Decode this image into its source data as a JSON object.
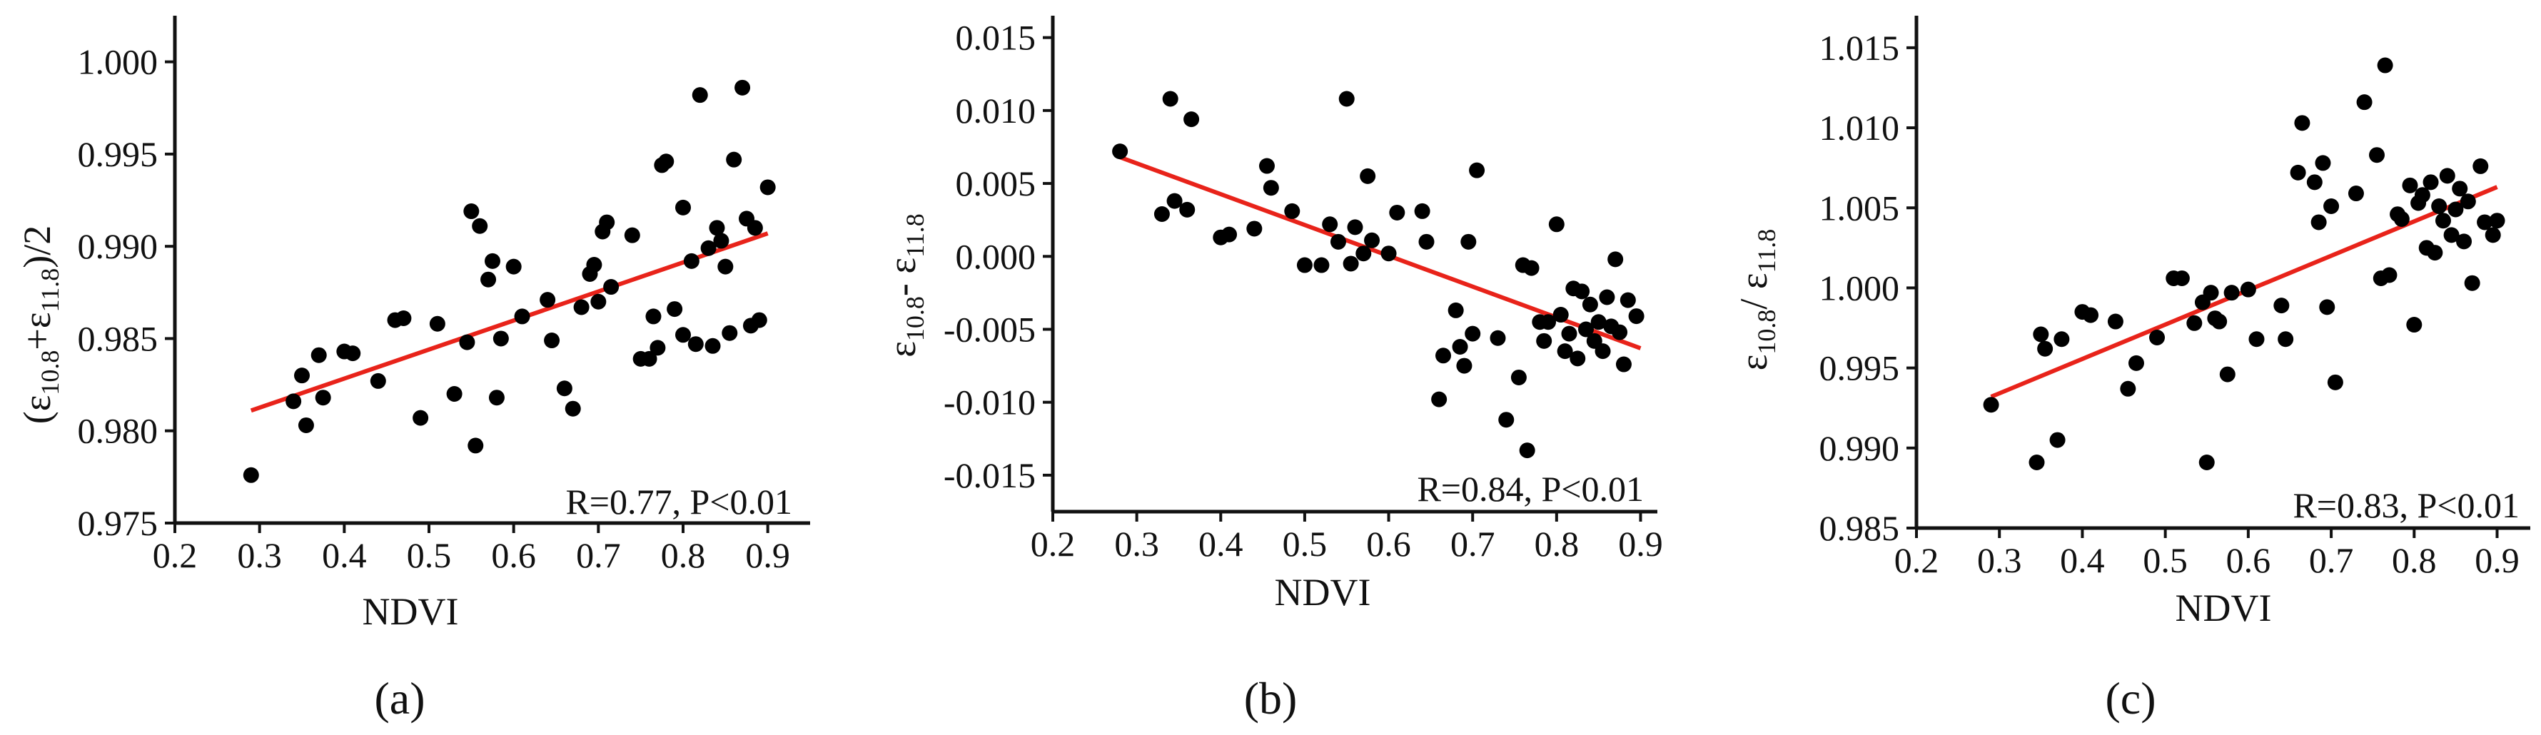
{
  "figure": {
    "colors": {
      "points": "#000000",
      "fit_line": "#e8231a",
      "axes": "#111111"
    }
  },
  "chart_data": [
    {
      "type": "scatter",
      "panel_label": "(a)",
      "xlabel": "NDVI",
      "ylabel": {
        "open": "(ε",
        "sub1": "10.8",
        "mid": "+ε",
        "sub2": "11.8",
        "close": ")/2"
      },
      "xlim": [
        0.2,
        0.95
      ],
      "ylim": [
        0.975,
        1.0025
      ],
      "xticks": [
        0.2,
        0.3,
        0.4,
        0.5,
        0.6,
        0.7,
        0.8,
        0.9
      ],
      "xtick_labels": [
        "0.2",
        "0.3",
        "0.4",
        "0.5",
        "0.6",
        "0.7",
        "0.8",
        "0.9"
      ],
      "yticks": [
        0.975,
        0.98,
        0.985,
        0.99,
        0.995,
        1.0
      ],
      "ytick_labels": [
        "0.975",
        "0.980",
        "0.985",
        "0.990",
        "0.995",
        "1.000"
      ],
      "annotation": "R=0.77, P<0.01",
      "fit_line": {
        "x": [
          0.29,
          0.9
        ],
        "y": [
          0.9811,
          0.9907
        ]
      },
      "grid": false,
      "points": [
        [
          0.29,
          0.9776
        ],
        [
          0.34,
          0.9816
        ],
        [
          0.35,
          0.983
        ],
        [
          0.355,
          0.9803
        ],
        [
          0.37,
          0.9841
        ],
        [
          0.375,
          0.9818
        ],
        [
          0.4,
          0.9843
        ],
        [
          0.41,
          0.9842
        ],
        [
          0.44,
          0.9827
        ],
        [
          0.46,
          0.986
        ],
        [
          0.47,
          0.9861
        ],
        [
          0.49,
          0.9807
        ],
        [
          0.51,
          0.9858
        ],
        [
          0.53,
          0.982
        ],
        [
          0.545,
          0.9848
        ],
        [
          0.55,
          0.9919
        ],
        [
          0.555,
          0.9792
        ],
        [
          0.56,
          0.9911
        ],
        [
          0.57,
          0.9882
        ],
        [
          0.575,
          0.9892
        ],
        [
          0.58,
          0.9818
        ],
        [
          0.585,
          0.985
        ],
        [
          0.6,
          0.9889
        ],
        [
          0.61,
          0.9862
        ],
        [
          0.64,
          0.9871
        ],
        [
          0.645,
          0.9849
        ],
        [
          0.66,
          0.9823
        ],
        [
          0.67,
          0.9812
        ],
        [
          0.68,
          0.9867
        ],
        [
          0.69,
          0.9885
        ],
        [
          0.695,
          0.989
        ],
        [
          0.7,
          0.987
        ],
        [
          0.705,
          0.9908
        ],
        [
          0.71,
          0.9913
        ],
        [
          0.715,
          0.9878
        ],
        [
          0.74,
          0.9906
        ],
        [
          0.75,
          0.9839
        ],
        [
          0.76,
          0.9839
        ],
        [
          0.765,
          0.9862
        ],
        [
          0.77,
          0.9845
        ],
        [
          0.775,
          0.9944
        ],
        [
          0.78,
          0.9946
        ],
        [
          0.79,
          0.9866
        ],
        [
          0.8,
          0.9921
        ],
        [
          0.8,
          0.9852
        ],
        [
          0.81,
          0.9892
        ],
        [
          0.815,
          0.9847
        ],
        [
          0.82,
          0.9982
        ],
        [
          0.83,
          0.9899
        ],
        [
          0.835,
          0.9846
        ],
        [
          0.84,
          0.991
        ],
        [
          0.845,
          0.9903
        ],
        [
          0.85,
          0.9889
        ],
        [
          0.855,
          0.9853
        ],
        [
          0.86,
          0.9947
        ],
        [
          0.87,
          0.9986
        ],
        [
          0.875,
          0.9915
        ],
        [
          0.88,
          0.9857
        ],
        [
          0.885,
          0.991
        ],
        [
          0.89,
          0.986
        ],
        [
          0.9,
          0.9932
        ]
      ]
    },
    {
      "type": "scatter",
      "panel_label": "(b)",
      "xlabel": "NDVI",
      "ylabel": {
        "open": "ε",
        "sub1": "10.8",
        "mid": "- ε",
        "sub2": "11.8",
        "close": ""
      },
      "xlim": [
        0.2,
        0.92
      ],
      "ylim": [
        -0.0175,
        0.0165
      ],
      "xticks": [
        0.2,
        0.3,
        0.4,
        0.5,
        0.6,
        0.7,
        0.8,
        0.9
      ],
      "xtick_labels": [
        "0.2",
        "0.3",
        "0.4",
        "0.5",
        "0.6",
        "0.7",
        "0.8",
        "0.9"
      ],
      "yticks": [
        -0.015,
        -0.01,
        -0.005,
        0.0,
        0.005,
        0.01,
        0.015
      ],
      "ytick_labels": [
        "-0.015",
        "-0.010",
        "-0.005",
        "0.000",
        "0.005",
        "0.010",
        "0.015"
      ],
      "annotation": "R=0.84, P<0.01",
      "fit_line": {
        "x": [
          0.28,
          0.9
        ],
        "y": [
          0.0068,
          -0.0063
        ]
      },
      "grid": false,
      "points": [
        [
          0.28,
          0.0072
        ],
        [
          0.33,
          0.0029
        ],
        [
          0.34,
          0.0108
        ],
        [
          0.345,
          0.0038
        ],
        [
          0.36,
          0.0032
        ],
        [
          0.365,
          0.0094
        ],
        [
          0.4,
          0.0013
        ],
        [
          0.41,
          0.0015
        ],
        [
          0.44,
          0.0019
        ],
        [
          0.455,
          0.0062
        ],
        [
          0.46,
          0.0047
        ],
        [
          0.485,
          0.0031
        ],
        [
          0.5,
          -0.0006
        ],
        [
          0.52,
          -0.0006
        ],
        [
          0.53,
          0.0022
        ],
        [
          0.54,
          0.001
        ],
        [
          0.55,
          0.0108
        ],
        [
          0.555,
          -0.0005
        ],
        [
          0.56,
          0.002
        ],
        [
          0.57,
          0.0002
        ],
        [
          0.575,
          0.0055
        ],
        [
          0.58,
          0.0011
        ],
        [
          0.6,
          0.0002
        ],
        [
          0.61,
          0.003
        ],
        [
          0.64,
          0.0031
        ],
        [
          0.645,
          0.001
        ],
        [
          0.66,
          -0.0098
        ],
        [
          0.665,
          -0.0068
        ],
        [
          0.68,
          -0.0037
        ],
        [
          0.685,
          -0.0062
        ],
        [
          0.69,
          -0.0075
        ],
        [
          0.695,
          0.001
        ],
        [
          0.7,
          -0.0053
        ],
        [
          0.705,
          0.0059
        ],
        [
          0.73,
          -0.0056
        ],
        [
          0.74,
          -0.0112
        ],
        [
          0.755,
          -0.0083
        ],
        [
          0.76,
          -0.0006
        ],
        [
          0.765,
          -0.0133
        ],
        [
          0.77,
          -0.0008
        ],
        [
          0.78,
          -0.0045
        ],
        [
          0.785,
          -0.0058
        ],
        [
          0.79,
          -0.0045
        ],
        [
          0.8,
          0.0022
        ],
        [
          0.805,
          -0.004
        ],
        [
          0.81,
          -0.0065
        ],
        [
          0.815,
          -0.0053
        ],
        [
          0.82,
          -0.0022
        ],
        [
          0.825,
          -0.007
        ],
        [
          0.83,
          -0.0024
        ],
        [
          0.835,
          -0.005
        ],
        [
          0.84,
          -0.0033
        ],
        [
          0.845,
          -0.0058
        ],
        [
          0.85,
          -0.0045
        ],
        [
          0.855,
          -0.0065
        ],
        [
          0.86,
          -0.0028
        ],
        [
          0.865,
          -0.0048
        ],
        [
          0.87,
          -0.0002
        ],
        [
          0.875,
          -0.0052
        ],
        [
          0.88,
          -0.0074
        ],
        [
          0.885,
          -0.003
        ],
        [
          0.895,
          -0.0041
        ]
      ]
    },
    {
      "type": "scatter",
      "panel_label": "(c)",
      "xlabel": "NDVI",
      "ylabel": {
        "open": "ε",
        "sub1": "10.8",
        "mid": "/ ε",
        "sub2": "11.8",
        "close": ""
      },
      "xlim": [
        0.2,
        0.94
      ],
      "ylim": [
        0.985,
        1.017
      ],
      "xticks": [
        0.2,
        0.3,
        0.4,
        0.5,
        0.6,
        0.7,
        0.8,
        0.9
      ],
      "xtick_labels": [
        "0.2",
        "0.3",
        "0.4",
        "0.5",
        "0.6",
        "0.7",
        "0.8",
        "0.9"
      ],
      "yticks": [
        0.985,
        0.99,
        0.995,
        1.0,
        1.005,
        1.01,
        1.015
      ],
      "ytick_labels": [
        "0.985",
        "0.990",
        "0.995",
        "1.000",
        "1.005",
        "1.010",
        "1.015"
      ],
      "annotation": "R=0.83, P<0.01",
      "fit_line": {
        "x": [
          0.29,
          0.9
        ],
        "y": [
          0.9932,
          1.0063
        ]
      },
      "grid": false,
      "points": [
        [
          0.29,
          0.9927
        ],
        [
          0.345,
          0.9891
        ],
        [
          0.35,
          0.9971
        ],
        [
          0.355,
          0.9962
        ],
        [
          0.37,
          0.9905
        ],
        [
          0.375,
          0.9968
        ],
        [
          0.4,
          0.9985
        ],
        [
          0.41,
          0.9983
        ],
        [
          0.44,
          0.9979
        ],
        [
          0.455,
          0.9937
        ],
        [
          0.465,
          0.9953
        ],
        [
          0.49,
          0.9969
        ],
        [
          0.51,
          1.0006
        ],
        [
          0.52,
          1.0006
        ],
        [
          0.535,
          0.9978
        ],
        [
          0.545,
          0.9991
        ],
        [
          0.55,
          0.9891
        ],
        [
          0.555,
          0.9997
        ],
        [
          0.56,
          0.9981
        ],
        [
          0.565,
          0.9979
        ],
        [
          0.575,
          0.9946
        ],
        [
          0.58,
          0.9997
        ],
        [
          0.6,
          0.9999
        ],
        [
          0.61,
          0.9968
        ],
        [
          0.64,
          0.9989
        ],
        [
          0.645,
          0.9968
        ],
        [
          0.66,
          1.0072
        ],
        [
          0.665,
          1.0103
        ],
        [
          0.68,
          1.0066
        ],
        [
          0.685,
          1.0041
        ],
        [
          0.69,
          1.0078
        ],
        [
          0.695,
          0.9988
        ],
        [
          0.7,
          1.0051
        ],
        [
          0.705,
          0.9941
        ],
        [
          0.73,
          1.0059
        ],
        [
          0.74,
          1.0116
        ],
        [
          0.755,
          1.0083
        ],
        [
          0.76,
          1.0006
        ],
        [
          0.765,
          1.0139
        ],
        [
          0.77,
          1.0008
        ],
        [
          0.78,
          1.0046
        ],
        [
          0.785,
          1.0043
        ],
        [
          0.795,
          1.0064
        ],
        [
          0.8,
          0.9977
        ],
        [
          0.805,
          1.0053
        ],
        [
          0.81,
          1.0058
        ],
        [
          0.815,
          1.0025
        ],
        [
          0.82,
          1.0066
        ],
        [
          0.825,
          1.0022
        ],
        [
          0.83,
          1.0051
        ],
        [
          0.835,
          1.0042
        ],
        [
          0.84,
          1.007
        ],
        [
          0.845,
          1.0033
        ],
        [
          0.85,
          1.0049
        ],
        [
          0.855,
          1.0062
        ],
        [
          0.86,
          1.0029
        ],
        [
          0.865,
          1.0054
        ],
        [
          0.87,
          1.0003
        ],
        [
          0.88,
          1.0076
        ],
        [
          0.885,
          1.0041
        ],
        [
          0.895,
          1.0033
        ],
        [
          0.9,
          1.0042
        ]
      ]
    }
  ]
}
